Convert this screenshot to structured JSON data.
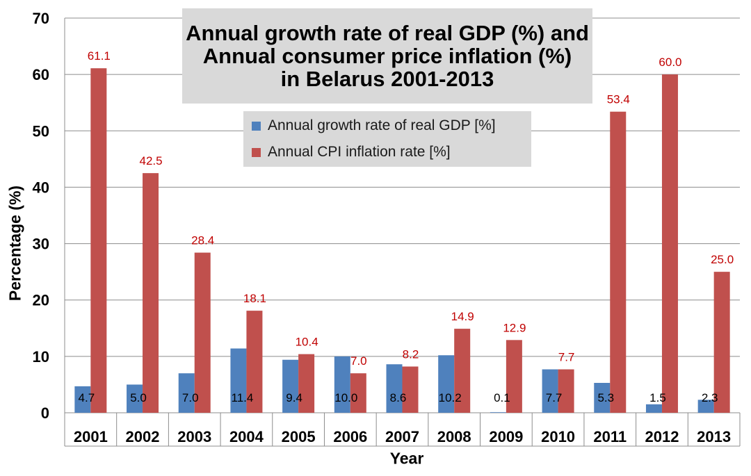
{
  "chart_data": {
    "type": "bar",
    "title_lines": [
      "Annual growth rate of real GDP (%) and",
      "Annual consumer price inflation (%)",
      "in Belarus 2001-2013"
    ],
    "xlabel": "Year",
    "ylabel": "Percentage (%)",
    "ylim": [
      0,
      70
    ],
    "yticks": [
      0,
      10,
      20,
      30,
      40,
      50,
      60,
      70
    ],
    "categories": [
      "2001",
      "2002",
      "2003",
      "2004",
      "2005",
      "2006",
      "2007",
      "2008",
      "2009",
      "2010",
      "2011",
      "2012",
      "2013"
    ],
    "series": [
      {
        "name": "Annual growth rate of real GDP [%]",
        "color": "#4f81bd",
        "label_color": "#000000",
        "values": [
          4.7,
          5.0,
          7.0,
          11.4,
          9.4,
          10.0,
          8.6,
          10.2,
          0.1,
          7.7,
          5.3,
          1.5,
          2.3
        ],
        "labels": [
          "4.7",
          "5.0",
          "7.0",
          "11.4",
          "9.4",
          "10.0",
          "8.6",
          "10.2",
          "0.1",
          "7.7",
          "5.3",
          "1.5",
          "2.3"
        ]
      },
      {
        "name": "Annual CPI inflation rate [%]",
        "color": "#c0504d",
        "label_color": "#c00000",
        "values": [
          61.1,
          42.5,
          28.4,
          18.1,
          10.4,
          7.0,
          8.2,
          14.9,
          12.9,
          7.7,
          53.4,
          60.0,
          25.0
        ],
        "labels": [
          "61.1",
          "42.5",
          "28.4",
          "18.1",
          "10.4",
          "7.0",
          "8.2",
          "14.9",
          "12.9",
          "7.7",
          "53.4",
          "60.0",
          "25.0"
        ]
      }
    ],
    "legend_position": "top-center",
    "grid": true
  }
}
